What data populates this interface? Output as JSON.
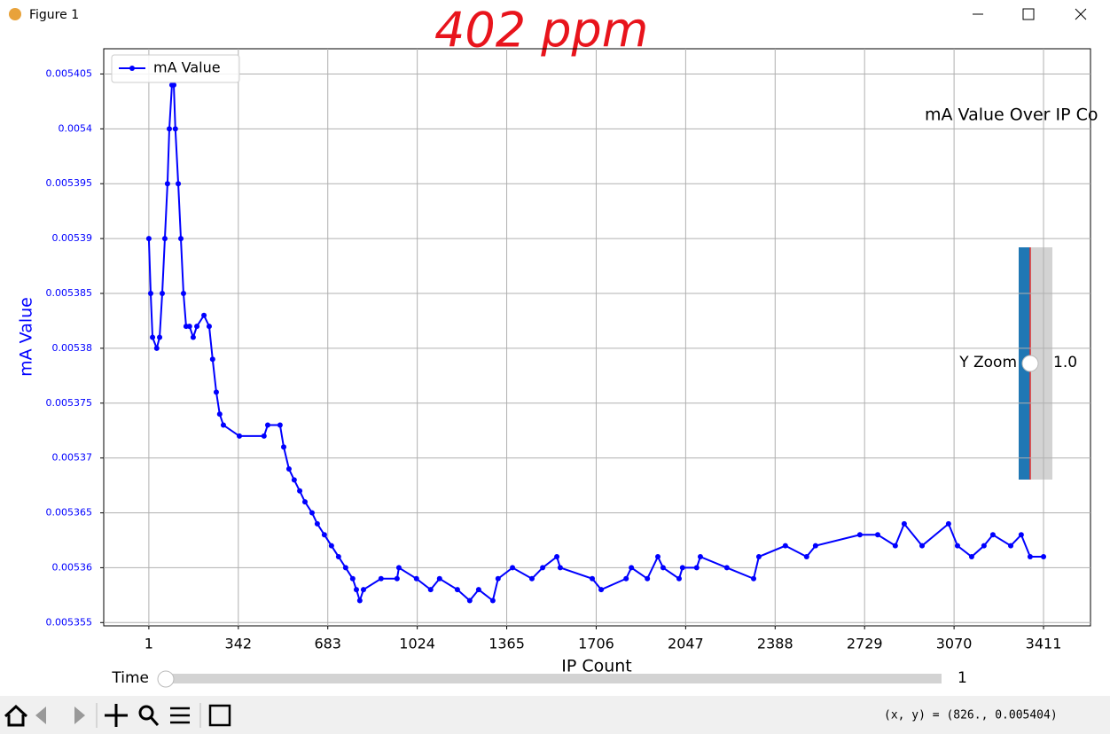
{
  "window": {
    "title": "Figure 1",
    "annotation": "402 ppm",
    "status": "(x, y) = (826., 0.005404)"
  },
  "sliders": {
    "y_zoom": {
      "label": "Y Zoom",
      "value_text": "1.0"
    },
    "time": {
      "label": "Time",
      "value_text": "1"
    }
  },
  "chart_data": {
    "type": "line",
    "title": "mA Value Over IP Co",
    "xlabel": "IP Count",
    "ylabel": "mA Value",
    "ylabel_color": "#0000ff",
    "grid": true,
    "legend_loc": "upper left",
    "xlim": [
      -171,
      3590
    ],
    "ylim": [
      0.0053547,
      0.0054073
    ],
    "xticks": [
      1,
      342,
      683,
      1024,
      1365,
      1706,
      2047,
      2388,
      2729,
      3070,
      3411
    ],
    "yticks": [
      0.005355,
      0.00536,
      0.005365,
      0.00537,
      0.005375,
      0.00538,
      0.005385,
      0.00539,
      0.005395,
      0.0054,
      0.005405
    ],
    "x": [
      1,
      8,
      15,
      31,
      42,
      52,
      62,
      72,
      79,
      89,
      96,
      102,
      113,
      123,
      133,
      143,
      156,
      170,
      184,
      211,
      231,
      244,
      258,
      271,
      285,
      346,
      440,
      454,
      501,
      515,
      535,
      555,
      576,
      596,
      623,
      643,
      670,
      697,
      724,
      751,
      778,
      792,
      805,
      819,
      886,
      947,
      954,
      1021,
      1075,
      1109,
      1177,
      1224,
      1258,
      1312,
      1332,
      1387,
      1461,
      1502,
      1556,
      1569,
      1691,
      1725,
      1820,
      1840,
      1901,
      1941,
      1961,
      2022,
      2035,
      2089,
      2103,
      2204,
      2306,
      2326,
      2427,
      2508,
      2542,
      2711,
      2779,
      2846,
      2880,
      2948,
      3049,
      3083,
      3137,
      3184,
      3218,
      3286,
      3326,
      3360,
      3411
    ],
    "series": [
      {
        "name": "mA Value",
        "color": "#0000ff",
        "values": [
          0.00539,
          0.005385,
          0.005381,
          0.00538,
          0.005381,
          0.005385,
          0.00539,
          0.005395,
          0.0054,
          0.005404,
          0.005404,
          0.0054,
          0.005395,
          0.00539,
          0.005385,
          0.005382,
          0.005382,
          0.005381,
          0.005382,
          0.005383,
          0.005382,
          0.005379,
          0.005376,
          0.005374,
          0.005373,
          0.005372,
          0.005372,
          0.005373,
          0.005373,
          0.005371,
          0.005369,
          0.005368,
          0.005367,
          0.005366,
          0.005365,
          0.005364,
          0.005363,
          0.005362,
          0.005361,
          0.00536,
          0.005359,
          0.005358,
          0.005357,
          0.005358,
          0.005359,
          0.005359,
          0.00536,
          0.005359,
          0.005358,
          0.005359,
          0.005358,
          0.005357,
          0.005358,
          0.005357,
          0.005359,
          0.00536,
          0.005359,
          0.00536,
          0.005361,
          0.00536,
          0.005359,
          0.005358,
          0.005359,
          0.00536,
          0.005359,
          0.005361,
          0.00536,
          0.005359,
          0.00536,
          0.00536,
          0.005361,
          0.00536,
          0.005359,
          0.005361,
          0.005362,
          0.005361,
          0.005362,
          0.005363,
          0.005363,
          0.005362,
          0.005364,
          0.005362,
          0.005364,
          0.005362,
          0.005361,
          0.005362,
          0.005363,
          0.005362,
          0.005363,
          0.005361,
          0.005361
        ]
      }
    ]
  }
}
